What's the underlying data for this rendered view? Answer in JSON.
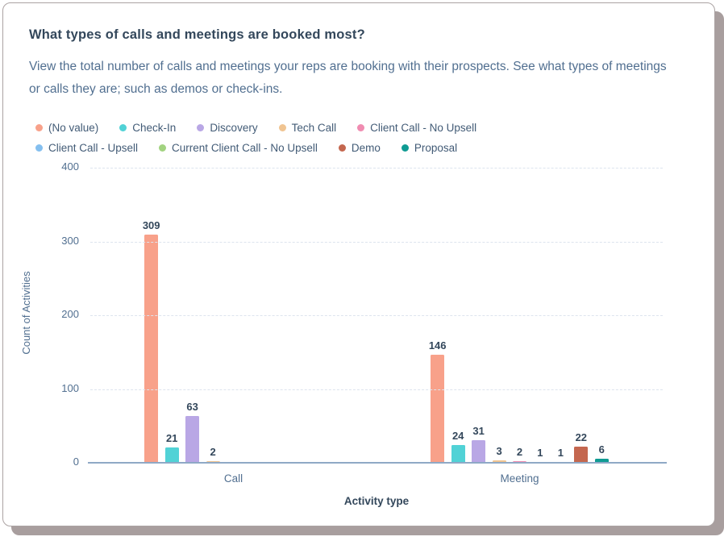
{
  "report": {
    "title": "What types of calls and meetings are booked most?",
    "description": "View the total number of calls and meetings your reps are booking with their prospects. See what types of meetings or calls they are; such as demos or check-ins."
  },
  "chart_data": {
    "type": "bar",
    "categories": [
      "Call",
      "Meeting"
    ],
    "series": [
      {
        "name": "(No value)",
        "color": "#f8a18a",
        "values": [
          309,
          146
        ]
      },
      {
        "name": "Check-In",
        "color": "#51d2d6",
        "values": [
          21,
          24
        ]
      },
      {
        "name": "Discovery",
        "color": "#b9a7e5",
        "values": [
          63,
          31
        ]
      },
      {
        "name": "Tech Call",
        "color": "#f0c491",
        "values": [
          2,
          3
        ]
      },
      {
        "name": "Client Call - No Upsell",
        "color": "#f08cb1",
        "values": [
          0,
          2
        ]
      },
      {
        "name": "Client Call - Upsell",
        "color": "#84bfef",
        "values": [
          0,
          1
        ]
      },
      {
        "name": "Current Client Call - No Upsell",
        "color": "#a2d380",
        "values": [
          0,
          1
        ]
      },
      {
        "name": "Demo",
        "color": "#c4674f",
        "values": [
          0,
          22
        ]
      },
      {
        "name": "Proposal",
        "color": "#0f9b93",
        "values": [
          0,
          6
        ]
      }
    ],
    "xlabel": "Activity type",
    "ylabel": "Count of Activities",
    "ylim": [
      0,
      400
    ],
    "yticks": [
      0,
      100,
      200,
      300,
      400
    ],
    "grid": "horizontal-dashed",
    "legend_position": "top",
    "value_labels_shown": true
  },
  "colors": {
    "title_text": "#33475b",
    "body_text": "#516f90",
    "legend_text": "#425b76",
    "value_label_text": "#33475b",
    "axis_line": "#8fa9c6",
    "gridline": "#dde4ee",
    "card_border": "#aba3a3",
    "card_shadow": "#a89e9e"
  }
}
